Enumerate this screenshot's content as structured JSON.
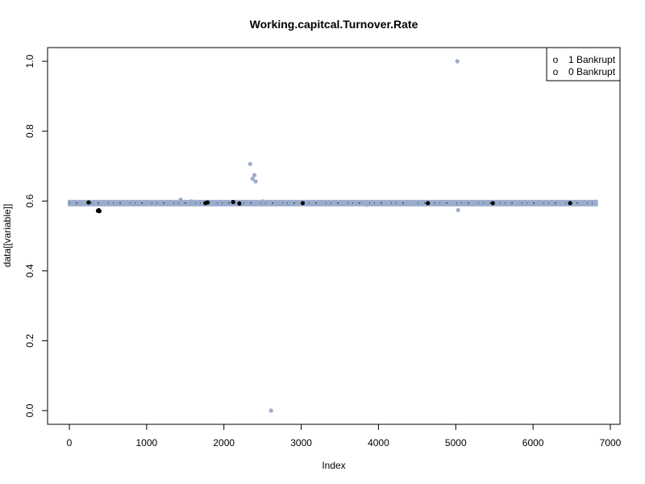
{
  "chart_data": {
    "type": "scatter",
    "title": "Working.capitcal.Turnover.Rate",
    "xlabel": "Index",
    "ylabel": "data[[variable]]",
    "xlim": [
      0,
      7000
    ],
    "ylim": [
      0.0,
      1.0
    ],
    "x_ticks": [
      0,
      1000,
      2000,
      3000,
      4000,
      5000,
      6000,
      7000
    ],
    "x_tick_labels": [
      "0",
      "1000",
      "2000",
      "3000",
      "4000",
      "5000",
      "6000",
      "7000"
    ],
    "y_ticks": [
      0.0,
      0.2,
      0.4,
      0.6,
      0.8,
      1.0
    ],
    "y_tick_labels": [
      "0.0",
      "0.2",
      "0.4",
      "0.6",
      "0.8",
      "1.0"
    ],
    "grid": false,
    "legend_position": "top-right",
    "legend": [
      {
        "label": "1 Bankrupt",
        "marker": "o"
      },
      {
        "label": "0 Bankrupt",
        "marker": "o"
      }
    ],
    "colors": {
      "non_bankrupt": "#9aaccb",
      "bankrupt": "#000000"
    },
    "band": {
      "x_range": [
        0,
        6819
      ],
      "y_value": 0.594
    },
    "series": [
      {
        "name": "0 Bankrupt",
        "color": "#9aaccb",
        "points": [
          {
            "x": 1440,
            "y": 0.604
          },
          {
            "x": 1580,
            "y": 0.599
          },
          {
            "x": 2340,
            "y": 0.706
          },
          {
            "x": 2370,
            "y": 0.664
          },
          {
            "x": 2395,
            "y": 0.674
          },
          {
            "x": 2410,
            "y": 0.656
          },
          {
            "x": 2500,
            "y": 0.599
          },
          {
            "x": 2610,
            "y": 0.0
          },
          {
            "x": 3150,
            "y": 0.597
          },
          {
            "x": 3850,
            "y": 0.589
          },
          {
            "x": 4450,
            "y": 0.597
          },
          {
            "x": 5020,
            "y": 1.0
          },
          {
            "x": 5030,
            "y": 0.574
          },
          {
            "x": 6810,
            "y": 0.598
          }
        ]
      },
      {
        "name": "1 Bankrupt",
        "color": "#000000",
        "points": [
          {
            "x": 370,
            "y": 0.572
          },
          {
            "x": 380,
            "y": 0.574
          },
          {
            "x": 390,
            "y": 0.571
          },
          {
            "x": 250,
            "y": 0.596
          },
          {
            "x": 1760,
            "y": 0.594
          },
          {
            "x": 1790,
            "y": 0.596
          },
          {
            "x": 2120,
            "y": 0.597
          },
          {
            "x": 2200,
            "y": 0.593
          },
          {
            "x": 3020,
            "y": 0.594
          },
          {
            "x": 4640,
            "y": 0.594
          },
          {
            "x": 5480,
            "y": 0.594
          },
          {
            "x": 6480,
            "y": 0.594
          }
        ]
      }
    ]
  }
}
